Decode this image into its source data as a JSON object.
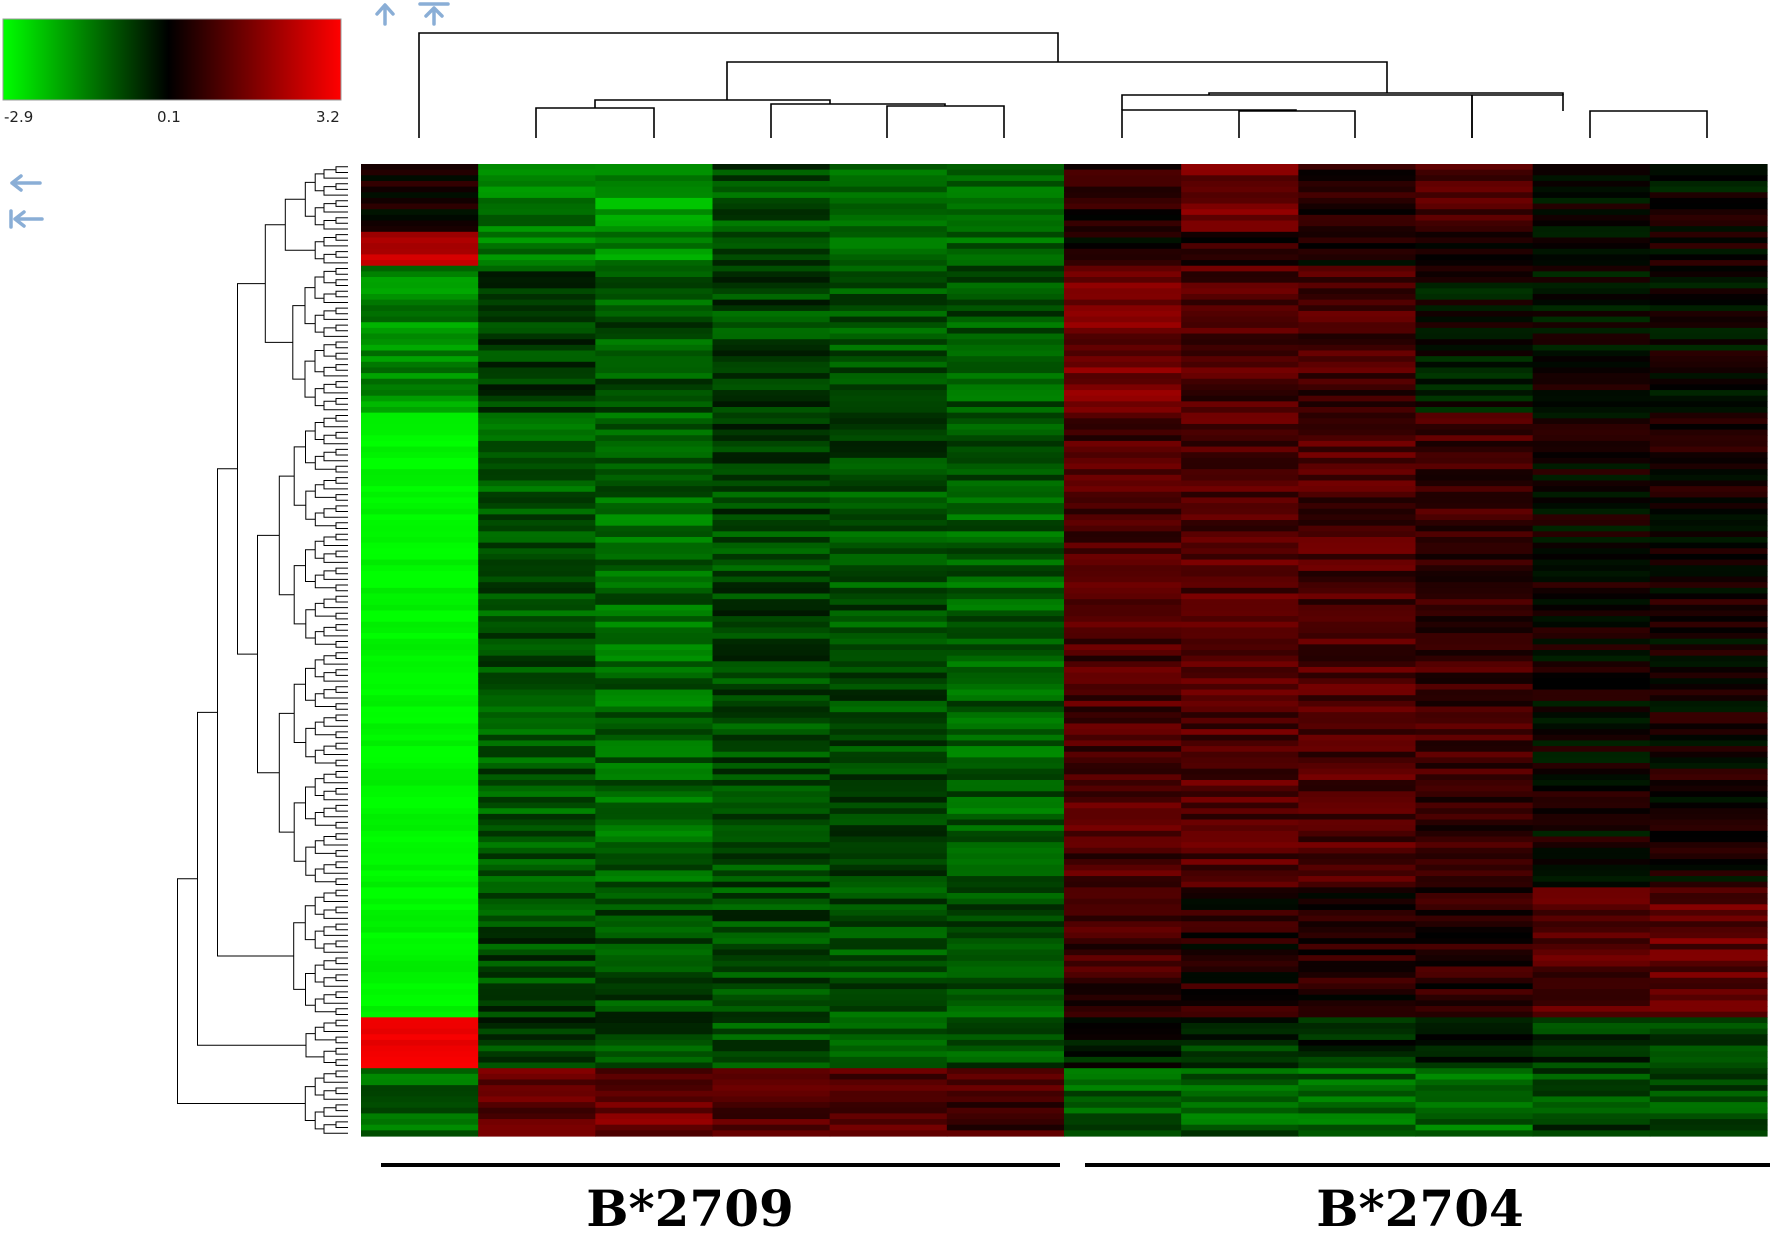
{
  "chart_data": {
    "type": "heatmap",
    "colorscale": {
      "min": -2.9,
      "mid": 0.1,
      "max": 3.2,
      "tick_labels": [
        "-2.9",
        "0.1",
        "3.2"
      ],
      "colors": {
        "low": "#00ff00",
        "mid": "#000000",
        "high": "#ff0000"
      }
    },
    "n_columns": 12,
    "n_rows": 172,
    "groups": [
      {
        "label": "B*2709",
        "columns": [
          1,
          2,
          3,
          4,
          5,
          6
        ]
      },
      {
        "label": "B*2704",
        "columns": [
          7,
          8,
          9,
          10,
          11,
          12
        ]
      }
    ],
    "row_blocks": [
      {
        "rows": [
          1,
          12
        ],
        "means": [
          0.2,
          -1.3,
          -1.7,
          -0.8,
          -1.1,
          -1.2,
          0.6,
          1.4,
          0.6,
          0.9,
          0.0,
          0.1
        ]
      },
      {
        "rows": [
          13,
          18
        ],
        "means": [
          2.4,
          -1.2,
          -1.6,
          -0.8,
          -1.0,
          -1.1,
          0.3,
          0.5,
          0.4,
          0.3,
          0.1,
          0.2
        ]
      },
      {
        "rows": [
          19,
          44
        ],
        "means": [
          -1.6,
          -0.6,
          -0.9,
          -0.7,
          -0.8,
          -0.9,
          1.5,
          1.0,
          0.9,
          0.0,
          0.1,
          0.1
        ]
      },
      {
        "rows": [
          45,
          128
        ],
        "means": [
          -2.8,
          -0.9,
          -1.1,
          -0.7,
          -0.8,
          -1.0,
          1.0,
          1.1,
          1.0,
          0.8,
          0.2,
          0.3
        ]
      },
      {
        "rows": [
          129,
          151
        ],
        "means": [
          -2.8,
          -0.7,
          -0.7,
          -0.8,
          -0.8,
          -0.9,
          0.8,
          0.5,
          0.5,
          0.6,
          1.0,
          1.3
        ]
      },
      {
        "rows": [
          152,
          160
        ],
        "means": [
          3.0,
          -0.6,
          -0.7,
          -0.8,
          -0.8,
          -0.9,
          -0.2,
          -0.4,
          -0.4,
          -0.3,
          -0.6,
          -0.7
        ]
      },
      {
        "rows": [
          161,
          172
        ],
        "means": [
          -1.1,
          1.2,
          1.4,
          1.1,
          1.0,
          0.9,
          -0.9,
          -1.0,
          -1.1,
          -1.1,
          -0.7,
          -0.8
        ]
      }
    ]
  },
  "icons": {
    "col_step": "arrow-up-icon",
    "col_top": "arrow-up-to-top-icon",
    "row_step": "arrow-left-icon",
    "row_top": "arrow-left-to-start-icon"
  },
  "colors": {
    "icon": "#8aaed6",
    "tree": "#000000",
    "group_bar": "#000000"
  }
}
